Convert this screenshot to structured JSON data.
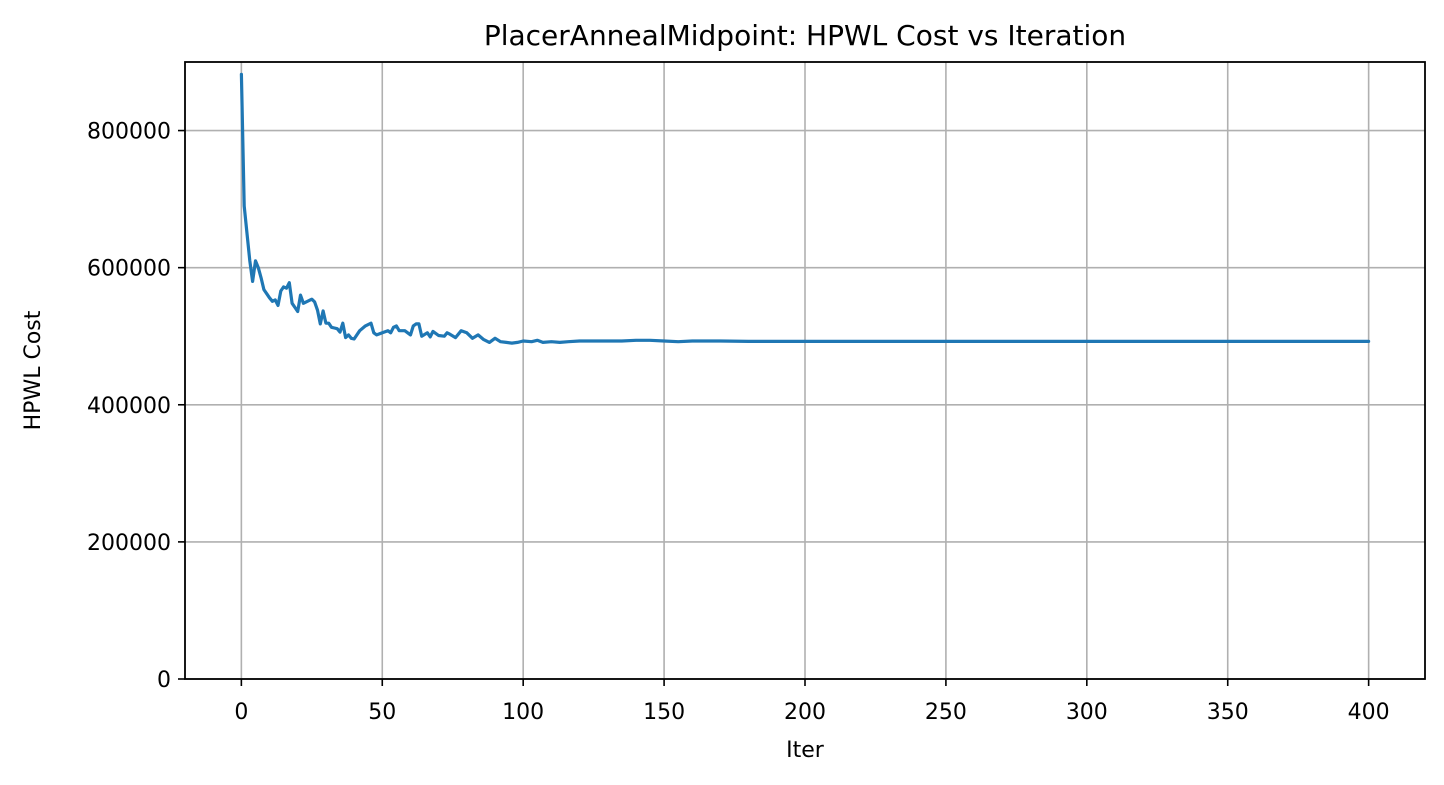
{
  "chart_data": {
    "type": "line",
    "title": "PlacerAnnealMidpoint: HPWL Cost vs Iteration",
    "xlabel": "Iter",
    "ylabel": "HPWL Cost",
    "xlim": [
      -20,
      420
    ],
    "ylim": [
      0,
      900000
    ],
    "xticks": [
      0,
      50,
      100,
      150,
      200,
      250,
      300,
      350,
      400
    ],
    "yticks": [
      0,
      200000,
      400000,
      600000,
      800000
    ],
    "xtick_labels": [
      "0",
      "50",
      "100",
      "150",
      "200",
      "250",
      "300",
      "350",
      "400"
    ],
    "ytick_labels": [
      "0",
      "200000",
      "400000",
      "600000",
      "800000"
    ],
    "grid": true,
    "legend": false,
    "series": [
      {
        "color": "#1f77b4",
        "x": [
          0,
          1,
          2,
          3,
          4,
          5,
          6,
          7,
          8,
          9,
          10,
          11,
          12,
          13,
          14,
          15,
          16,
          17,
          18,
          19,
          20,
          21,
          22,
          23,
          24,
          25,
          26,
          27,
          28,
          29,
          30,
          31,
          32,
          33,
          34,
          35,
          36,
          37,
          38,
          39,
          40,
          42,
          44,
          46,
          47,
          48,
          50,
          52,
          53,
          54,
          55,
          56,
          58,
          60,
          61,
          62,
          63,
          64,
          66,
          67,
          68,
          70,
          72,
          73,
          74,
          76,
          78,
          80,
          82,
          84,
          86,
          88,
          90,
          92,
          94,
          96,
          98,
          100,
          103,
          105,
          107,
          110,
          113,
          116,
          120,
          125,
          130,
          135,
          140,
          145,
          150,
          155,
          160,
          165,
          170,
          180,
          190,
          200,
          250,
          300,
          350,
          400
        ],
        "y": [
          882000,
          690000,
          650000,
          610000,
          580000,
          610000,
          600000,
          585000,
          568000,
          562000,
          556000,
          551000,
          553000,
          545000,
          566000,
          572000,
          570000,
          578000,
          548000,
          542000,
          536000,
          560000,
          548000,
          550000,
          552000,
          554000,
          550000,
          538000,
          518000,
          537000,
          519000,
          519000,
          513000,
          512000,
          511000,
          506000,
          519000,
          498000,
          502000,
          497000,
          496000,
          508000,
          515000,
          519000,
          505000,
          502000,
          505000,
          508000,
          505000,
          513000,
          515000,
          508000,
          508000,
          502000,
          515000,
          518000,
          518000,
          500000,
          505000,
          499000,
          507000,
          501000,
          500000,
          505000,
          503000,
          498000,
          508000,
          505000,
          497000,
          502000,
          495000,
          491000,
          497000,
          492000,
          491000,
          490000,
          491000,
          493000,
          492000,
          494000,
          491000,
          492000,
          491000,
          492000,
          493000,
          493000,
          493000,
          493000,
          494000,
          494000,
          493000,
          492000,
          493000,
          493000,
          493000,
          492500,
          492500,
          492500,
          492500,
          492500,
          492500,
          492500
        ]
      }
    ]
  }
}
